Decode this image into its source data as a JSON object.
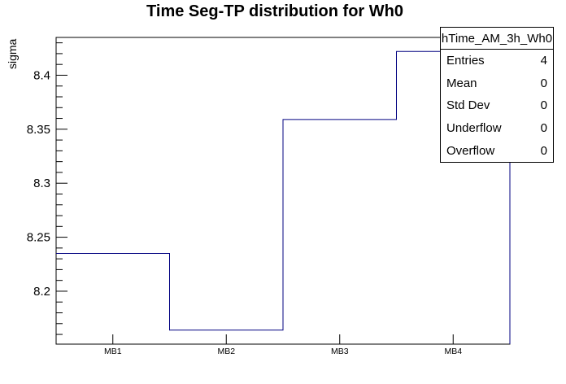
{
  "chart_data": {
    "type": "line",
    "subtype": "step-histogram",
    "title": "Time Seg-TP distribution for Wh0",
    "xlabel": "",
    "ylabel": "sigma",
    "categories": [
      "MB1",
      "MB2",
      "MB3",
      "MB4"
    ],
    "values": [
      8.235,
      8.164,
      8.359,
      8.422
    ],
    "ylim": [
      8.151,
      8.435
    ],
    "yticks": [
      8.2,
      8.25,
      8.3,
      8.35,
      8.4
    ],
    "ytick_labels": [
      "8.2",
      "8.25",
      "8.3",
      "8.35",
      "8.4"
    ],
    "y_minor_step": 0.01,
    "grid": false,
    "legend": false,
    "line_color": "#000080",
    "axis_color": "#000000",
    "background_color": "#ffffff"
  },
  "stats_box": {
    "header": "hTime_AM_3h_Wh0",
    "rows": [
      {
        "label": "Entries",
        "value": "4"
      },
      {
        "label": "Mean",
        "value": "0"
      },
      {
        "label": "Std Dev",
        "value": "0"
      },
      {
        "label": "Underflow",
        "value": "0"
      },
      {
        "label": "Overflow",
        "value": "0"
      }
    ]
  }
}
